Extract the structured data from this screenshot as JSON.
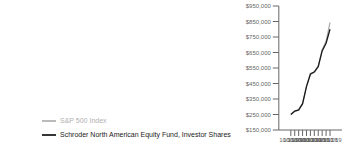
{
  "chart_data": {
    "type": "line",
    "categories": [
      "10/31/09",
      "10/31/10",
      "10/31/11",
      "10/31/12",
      "10/31/13",
      "10/31/14",
      "10/31/15",
      "10/31/16",
      "10/31/17",
      "10/31/18",
      "10/31/19"
    ],
    "series": [
      {
        "name": "S&P 500 Index",
        "color": "#b0b0b0",
        "values": [
          250000,
          270000,
          278000,
          318000,
          435000,
          515000,
          520000,
          558000,
          668000,
          722000,
          845000
        ]
      },
      {
        "name": "Schroder North American Equity Fund, Investor Shares",
        "color": "#1a1a1a",
        "values": [
          250000,
          272000,
          280000,
          320000,
          430000,
          510000,
          525000,
          560000,
          660000,
          710000,
          800000
        ]
      }
    ],
    "ylim": [
      150000,
      950000
    ],
    "yticks": [
      {
        "value": 150000,
        "label": "$150,000"
      },
      {
        "value": 250000,
        "label": "$250,000"
      },
      {
        "value": 350000,
        "label": "$350,000"
      },
      {
        "value": 450000,
        "label": "$450,000"
      },
      {
        "value": 550000,
        "label": "$550,000"
      },
      {
        "value": 650000,
        "label": "$650,000"
      },
      {
        "value": 750000,
        "label": "$750,000"
      },
      {
        "value": 850000,
        "label": "$850,000"
      },
      {
        "value": 950000,
        "label": "$950,000"
      }
    ],
    "grid": false,
    "legend": "lower left"
  }
}
